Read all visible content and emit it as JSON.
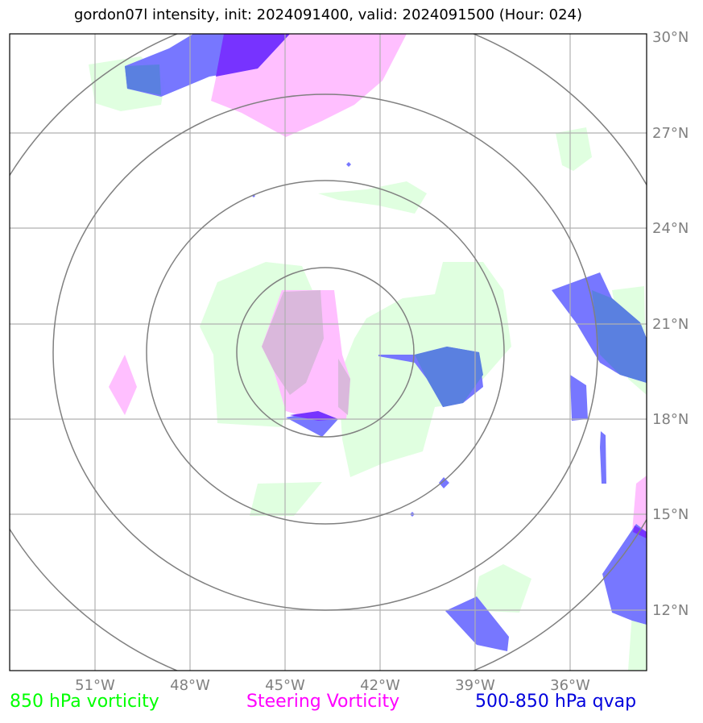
{
  "title": "gordon07l intensity, init: 2024091400, valid: 2024091500 (Hour: 024)",
  "lat_labels": [
    "30°N",
    "27°N",
    "24°N",
    "21°N",
    "18°N",
    "15°N",
    "12°N"
  ],
  "lon_labels": [
    "51°W",
    "48°W",
    "45°W",
    "42°W",
    "39°W",
    "36°W"
  ],
  "legend": [
    {
      "label": "850 hPa vorticity",
      "color": "#00ff00"
    },
    {
      "label": "Steering Vorticity",
      "color": "#ff00ff"
    },
    {
      "label": "500-850 hPa qvap",
      "color": "#0000dd"
    }
  ],
  "colors": {
    "vorticity_850": "#e0ffe0",
    "steering": "#ffbfff",
    "qvap": "#7777ff",
    "overlap": "#d8b8e0",
    "grid": "#b0b0b0",
    "rings": "#808080"
  }
}
